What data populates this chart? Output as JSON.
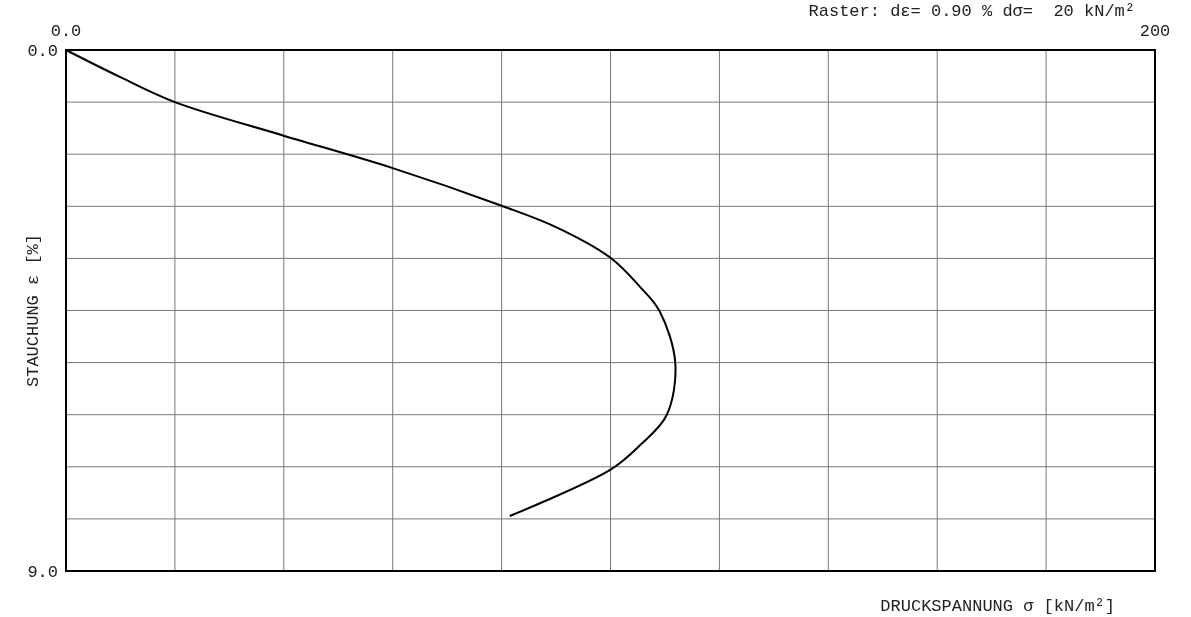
{
  "chart_data": {
    "type": "line",
    "xlabel": "DRUCKSPANNUNG σ [kN/m²]",
    "ylabel": "STAUCHUNG ε [%]",
    "annotations": [
      "Raster: dε= 0.90 % dσ=  20 kN/m²"
    ],
    "xlim": [
      0,
      200
    ],
    "ylim": [
      9.0,
      0.0
    ],
    "xticks": [
      {
        "value": 0,
        "label": "0.0"
      },
      {
        "value": 20,
        "label": null
      },
      {
        "value": 40,
        "label": null
      },
      {
        "value": 60,
        "label": null
      },
      {
        "value": 80,
        "label": null
      },
      {
        "value": 100,
        "label": null
      },
      {
        "value": 120,
        "label": null
      },
      {
        "value": 140,
        "label": null
      },
      {
        "value": 160,
        "label": null
      },
      {
        "value": 180,
        "label": null
      },
      {
        "value": 200,
        "label": "200"
      }
    ],
    "yticks": [
      {
        "value": 0,
        "label": "0.0"
      },
      {
        "value": 0.9,
        "label": null
      },
      {
        "value": 1.8,
        "label": null
      },
      {
        "value": 2.7,
        "label": null
      },
      {
        "value": 3.6,
        "label": null
      },
      {
        "value": 4.5,
        "label": null
      },
      {
        "value": 5.4,
        "label": null
      },
      {
        "value": 6.3,
        "label": null
      },
      {
        "value": 7.2,
        "label": null
      },
      {
        "value": 8.1,
        "label": null
      },
      {
        "value": 9.0,
        "label": "9.0"
      }
    ],
    "grid": true,
    "series": [
      {
        "color": "#000000",
        "x": [
          0,
          10,
          20,
          40,
          60,
          80,
          90,
          100,
          105.5,
          109,
          111.9,
          110.3,
          105.5,
          100,
          81.5
        ],
        "values": [
          0,
          0.47,
          0.9,
          1.48,
          2.04,
          2.69,
          3.06,
          3.59,
          4.1,
          4.51,
          5.41,
          6.31,
          6.82,
          7.25,
          8.05
        ]
      }
    ]
  }
}
